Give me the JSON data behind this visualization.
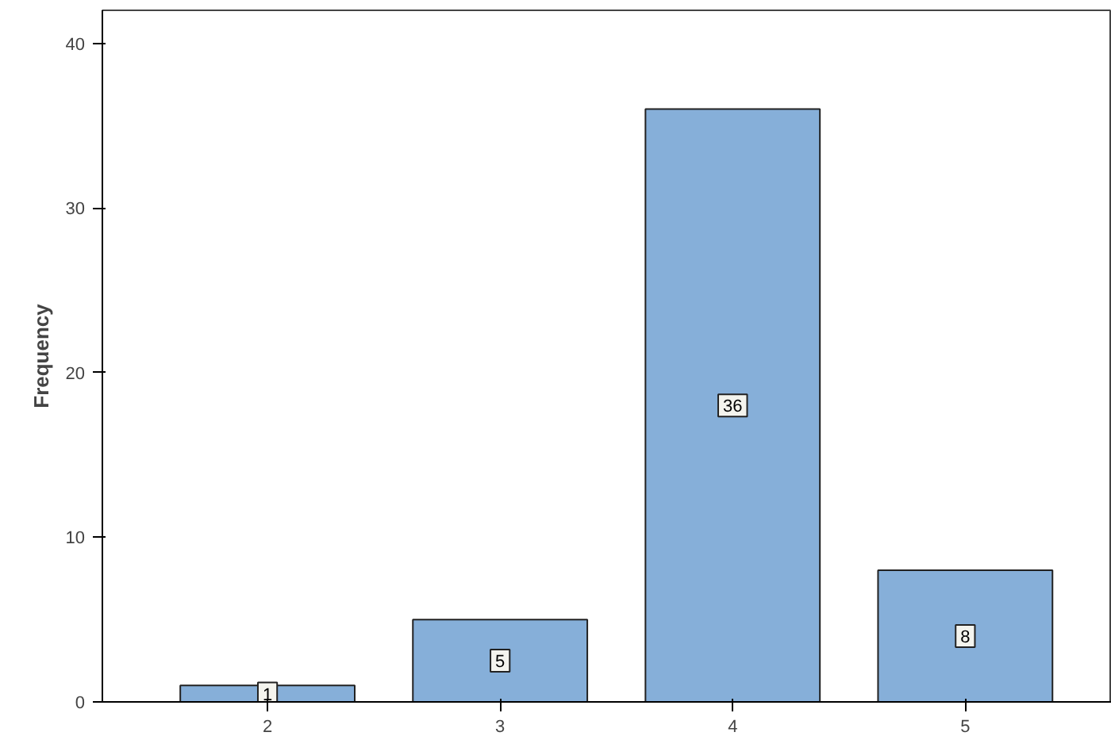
{
  "chart_data": {
    "type": "bar",
    "ylabel": "Frequency",
    "categories": [
      "2",
      "3",
      "4",
      "5"
    ],
    "values": [
      1,
      5,
      36,
      8
    ],
    "color": "#86afd9",
    "ylim": [
      0,
      42
    ],
    "yticks": [
      0,
      10,
      20,
      30,
      40
    ],
    "data_labels": true,
    "grid": false
  }
}
